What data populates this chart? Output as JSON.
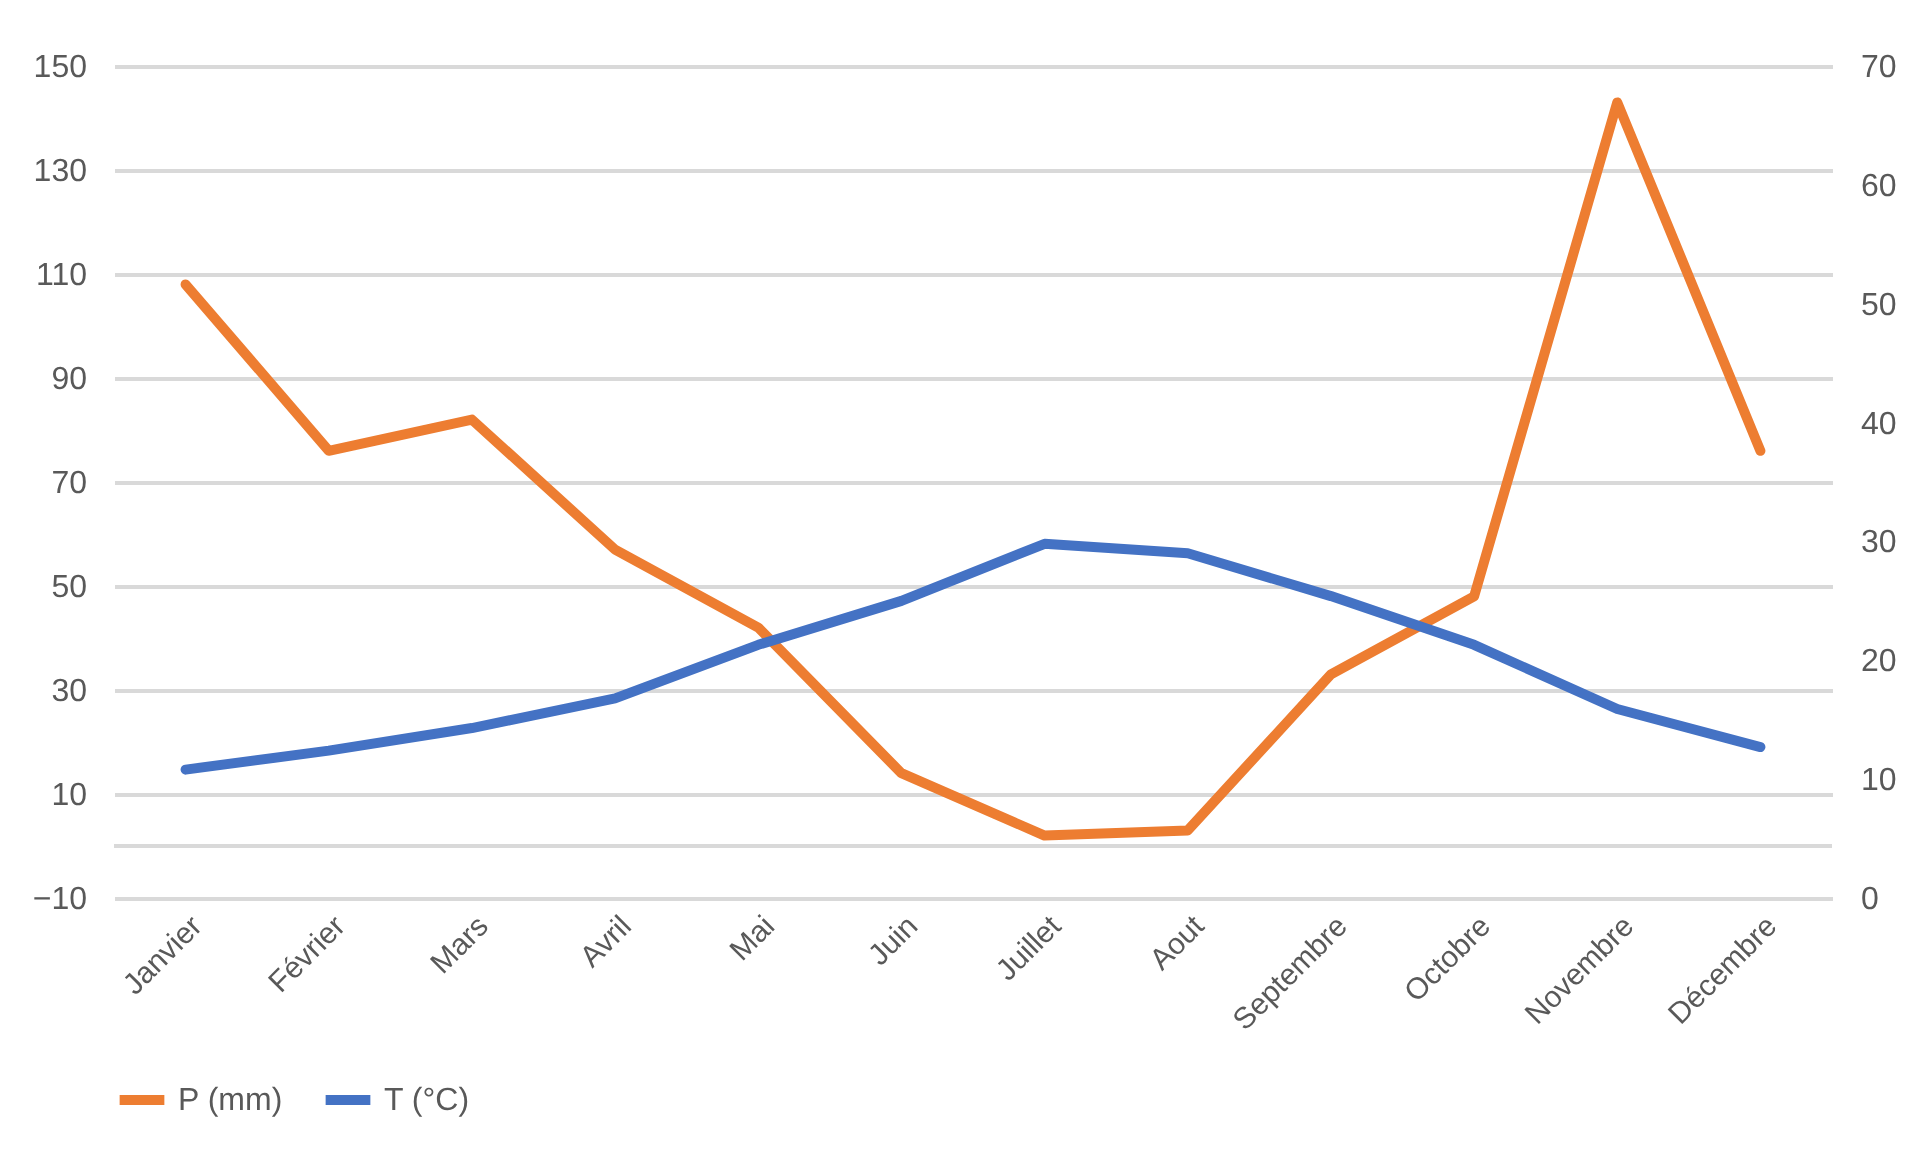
{
  "chart_data": {
    "type": "line",
    "categories": [
      "Janvier",
      "Février",
      "Mars",
      "Avril",
      "Mai",
      "Juin",
      "Juillet",
      "Aout",
      "Septembre",
      "Octobre",
      "Novembre",
      "Décembre"
    ],
    "series": [
      {
        "name": "P (mm)",
        "color": "#ed7d31",
        "axis": "y",
        "values": [
          108,
          76,
          82,
          57,
          42,
          14,
          2,
          3,
          33,
          48,
          143,
          76
        ]
      },
      {
        "name": "T (°C)",
        "color": "#4472c4",
        "axis": "y2",
        "values": [
          10.8,
          12.4,
          14.3,
          16.8,
          21.3,
          25.0,
          29.8,
          29.0,
          25.4,
          21.3,
          15.9,
          12.7
        ]
      }
    ],
    "ylim": [
      -10,
      150
    ],
    "yticks": [
      -10,
      10,
      30,
      50,
      70,
      90,
      110,
      130,
      150
    ],
    "y2lim": [
      0,
      70
    ],
    "y2ticks": [
      0,
      10,
      20,
      30,
      40,
      50,
      60,
      70
    ],
    "ref_lines": [
      {
        "axis": "y",
        "value": 0,
        "color": "#d9d9d9"
      }
    ],
    "grid": "y",
    "legend": "bottom",
    "marker": "none",
    "line_style": "solid"
  }
}
